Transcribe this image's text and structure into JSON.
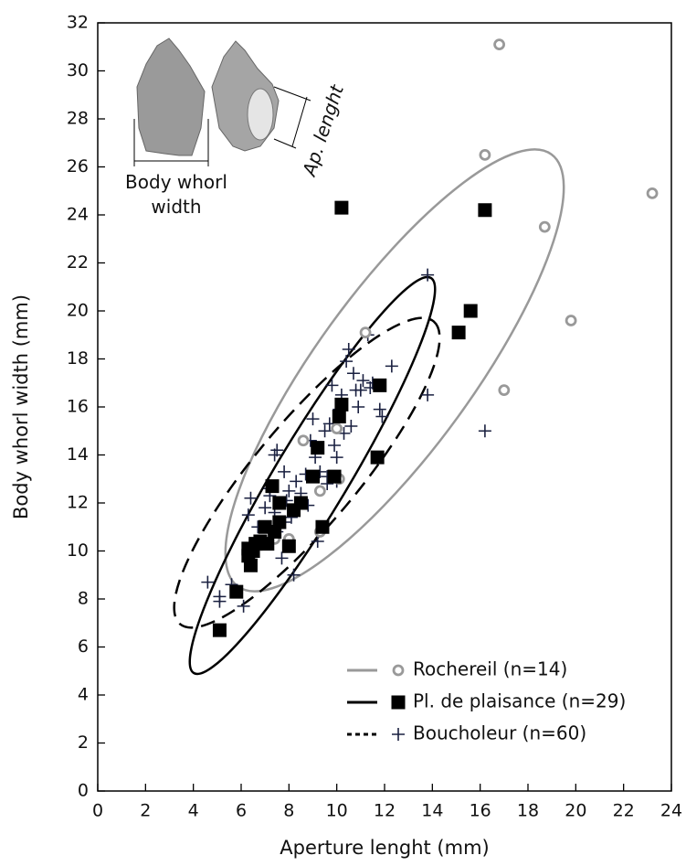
{
  "chart_data": {
    "type": "scatter",
    "xlabel": "Aperture lenght (mm)",
    "ylabel": "Body whorl width (mm)",
    "xlim": [
      0,
      24
    ],
    "ylim": [
      0,
      32
    ],
    "xticks": [
      0,
      2,
      4,
      6,
      8,
      10,
      12,
      14,
      16,
      18,
      20,
      22,
      24
    ],
    "yticks": [
      0,
      2,
      4,
      6,
      8,
      10,
      12,
      14,
      16,
      18,
      20,
      22,
      24,
      26,
      28,
      30,
      32
    ],
    "legend": "lower right",
    "inset": {
      "width_label": "Body whorl width",
      "length_label": "Ap. lenght"
    },
    "series": [
      {
        "name": "Rochereil (n=14)",
        "color": "#999999",
        "marker": "circle",
        "line_style": "solid",
        "x": [
          16.8,
          16.2,
          23.2,
          18.7,
          19.8,
          17,
          11.2,
          10,
          8.6,
          9.3,
          10.1,
          9.3,
          7.4,
          8
        ],
        "values": [
          31.1,
          26.5,
          24.9,
          23.5,
          19.6,
          16.7,
          19.1,
          15.1,
          14.6,
          12.5,
          13,
          10.8,
          10.5,
          10.5
        ]
      },
      {
        "name": "Pl. de plaisance (n=29)",
        "color": "#000000",
        "marker": "square",
        "line_style": "solid",
        "x": [
          10.2,
          16.2,
          15.6,
          15.1,
          11.8,
          10.2,
          10.1,
          11.7,
          9.2,
          9,
          9.9,
          9.4,
          8.5,
          8.2,
          7.6,
          7.3,
          7,
          7.6,
          8,
          7.1,
          6.8,
          6.5,
          6.3,
          6.4,
          6.6,
          5.8,
          5.1,
          7.4,
          6.3
        ],
        "values": [
          24.3,
          24.2,
          20,
          19.1,
          16.9,
          16.1,
          15.6,
          13.9,
          14.3,
          13.1,
          13.1,
          11,
          12,
          11.7,
          12,
          12.7,
          11,
          11.2,
          10.2,
          10.3,
          10.4,
          10,
          9.8,
          9.4,
          10.3,
          8.3,
          6.7,
          10.8,
          10.1
        ]
      },
      {
        "name": "Boucholeur (n=60)",
        "color": "#1a2040",
        "marker": "plus",
        "line_style": "dashed",
        "x": [
          4.6,
          5.1,
          5.1,
          5.6,
          6.1,
          6.3,
          6.4,
          6.7,
          7,
          7.2,
          7.4,
          7.4,
          7.5,
          7.5,
          7.7,
          7.8,
          7.9,
          8,
          8.1,
          8.2,
          8.3,
          8.5,
          8.7,
          8.8,
          9,
          9.1,
          9.2,
          9.3,
          9.5,
          9.6,
          9.7,
          9.8,
          9.9,
          10,
          10,
          10.1,
          10.2,
          10.4,
          10.5,
          10.6,
          10.7,
          10.8,
          10.9,
          11,
          11.1,
          11.3,
          11.4,
          11.5,
          11.8,
          11.9,
          12.3,
          13.8,
          13.8,
          16.2,
          9.6,
          8.9,
          10.3,
          7.2,
          6.9,
          7.8
        ],
        "values": [
          8.7,
          7.9,
          8.1,
          8.6,
          7.7,
          11.5,
          12.2,
          11,
          11.8,
          12.3,
          11.6,
          14,
          14.2,
          10.8,
          9.7,
          11.2,
          12.1,
          12.5,
          11.4,
          9,
          12.9,
          12.4,
          13.2,
          11.9,
          15.5,
          13.9,
          10.4,
          13.3,
          15,
          12.8,
          15.3,
          16.9,
          14.4,
          13.9,
          12.9,
          15.9,
          16.5,
          17.9,
          18.4,
          15.2,
          17.4,
          16.7,
          16,
          16.7,
          17.1,
          19,
          16.8,
          17,
          15.9,
          15.6,
          17.7,
          21.5,
          16.5,
          15,
          13.1,
          14.6,
          14.9,
          12.6,
          10.3,
          13.3
        ]
      }
    ]
  }
}
